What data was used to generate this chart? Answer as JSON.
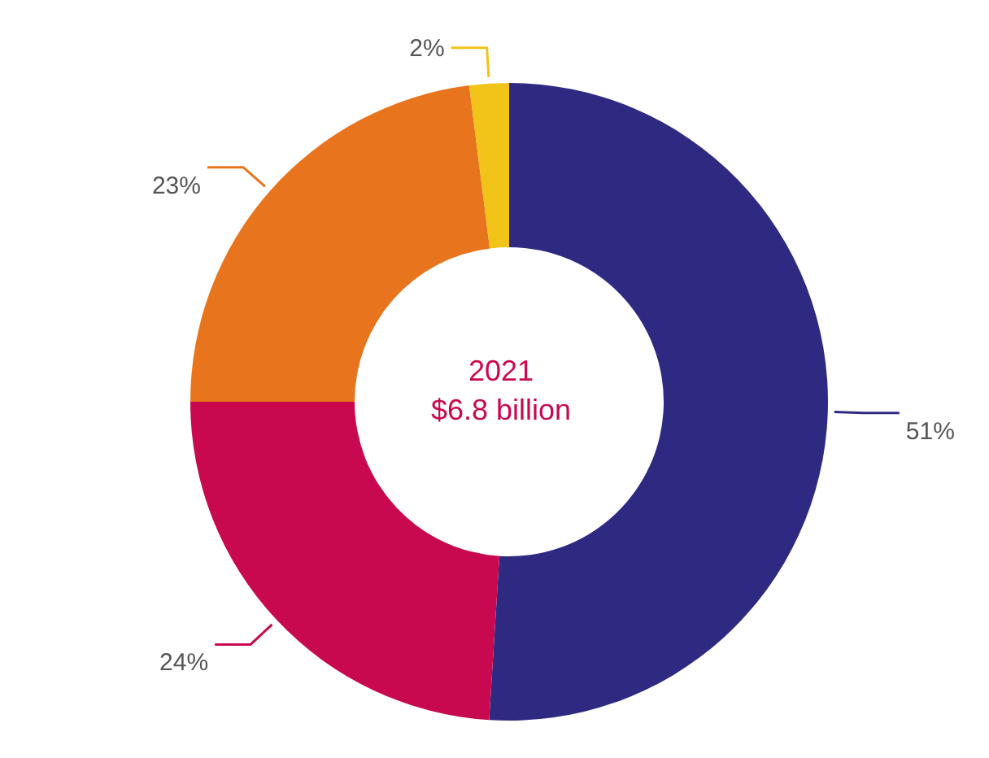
{
  "chart_data": {
    "type": "donut",
    "title": "2021",
    "subtitle": "$6.8 billion",
    "categories": [
      null,
      null,
      null,
      null
    ],
    "values": [
      51,
      24,
      23,
      2
    ],
    "value_labels": [
      "51%",
      "24%",
      "23%",
      "2%"
    ],
    "colors": [
      "#2e2a82",
      "#c8094f",
      "#e8741e",
      "#f2c318"
    ],
    "legend": false
  }
}
